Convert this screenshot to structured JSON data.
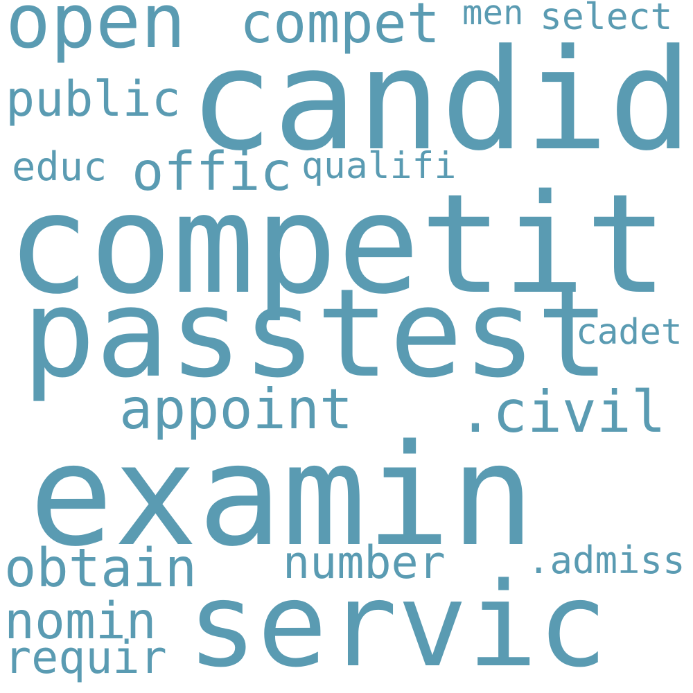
{
  "word_color": "#5a9bb2",
  "background_color": "#ffffff",
  "words": {
    "open": "open",
    "compet": "compet",
    "men": "men",
    "select": "select",
    "candid": "candid",
    "public": "public",
    "educ": "educ",
    "offic": "offic",
    "qualifi": "qualifi",
    "competit": "competit",
    "passtest": "passtest",
    "cadet": "cadet",
    "appoint": "appoint",
    "civil": ".civil",
    "examin": "examin",
    "obtain": "obtain",
    "number": "number",
    "admiss": ".admiss",
    "servic": "servic",
    "nomin": "nomin",
    "requir": "requir"
  }
}
